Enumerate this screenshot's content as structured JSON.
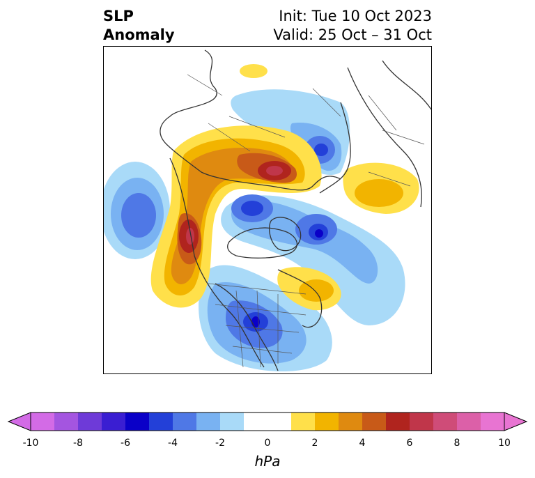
{
  "title": {
    "left_line1": "SLP",
    "left_line2": "Anomaly",
    "right_line1": "Init: Tue 10 Oct 2023",
    "right_line2": "Valid: 25 Oct – 31 Oct"
  },
  "colorbar": {
    "unit": "hPa",
    "ticks": [
      "-10",
      "-8",
      "-6",
      "-4",
      "-2",
      "0",
      "2",
      "4",
      "6",
      "8",
      "10"
    ],
    "extend": "both",
    "colors": [
      "#d36be6",
      "#a455e0",
      "#6e3ad8",
      "#3a1ed2",
      "#0a00c8",
      "#2340d8",
      "#4f78e6",
      "#79b2f2",
      "#a9daf8",
      "#ffffff",
      "#ffffff",
      "#ffe04a",
      "#f2b400",
      "#df8a10",
      "#c85a18",
      "#b0241e",
      "#c0364a",
      "#cf4c78",
      "#dc60a8",
      "#e874d2"
    ]
  },
  "map": {
    "projection": "north polar stereographic",
    "variable": "sea level pressure anomaly",
    "colors": {
      "neg1": "#a9daf8",
      "neg2": "#79b2f2",
      "neg3": "#4f78e6",
      "neg4": "#2340d8",
      "neg5": "#0a00c8",
      "pos1": "#ffe04a",
      "pos2": "#f2b400",
      "pos3": "#df8a10",
      "pos4": "#c85a18",
      "pos5": "#b0241e",
      "pos6": "#c0364a",
      "coast": "#333333"
    }
  }
}
